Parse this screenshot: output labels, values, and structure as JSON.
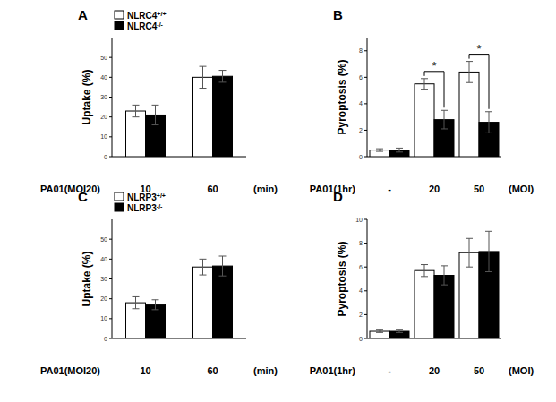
{
  "chart_data": [
    {
      "type": "bar",
      "title": "A",
      "y_label": "Uptake (%)",
      "x_label": "PA01(MOI20)",
      "x_unit_label": "(min)",
      "categories": [
        "10",
        "60"
      ],
      "ylim": [
        0,
        60
      ],
      "yticks": [
        0,
        10,
        20,
        30,
        40,
        50
      ],
      "legend": "upper left",
      "series": [
        {
          "name": "NLRC4+/+",
          "color": "#ffffff",
          "values": [
            23,
            40
          ],
          "errors": [
            3,
            5.5
          ]
        },
        {
          "name": "NLRC4-/-",
          "color": "#000000",
          "values": [
            21,
            40.5
          ],
          "errors": [
            5,
            3
          ]
        }
      ]
    },
    {
      "type": "bar",
      "title": "B",
      "y_label": "Pyroptosis (%)",
      "x_label": "PA01(1hr)",
      "x_unit_label": "(MOI)",
      "categories": [
        "-",
        "20",
        "50"
      ],
      "ylim": [
        0,
        9
      ],
      "yticks": [
        0,
        2,
        4,
        6,
        8
      ],
      "series": [
        {
          "color": "#ffffff",
          "values": [
            0.5,
            5.5,
            6.4
          ],
          "errors": [
            0.1,
            0.4,
            0.8
          ]
        },
        {
          "color": "#000000",
          "values": [
            0.5,
            2.8,
            2.6
          ],
          "errors": [
            0.15,
            0.7,
            0.8
          ]
        }
      ],
      "annotations": [
        {
          "text": "*",
          "category": "20"
        },
        {
          "text": "*",
          "category": "50"
        }
      ]
    },
    {
      "type": "bar",
      "title": "C",
      "y_label": "Uptake (%)",
      "x_label": "PA01(MOI20)",
      "x_unit_label": "(min)",
      "categories": [
        "10",
        "60"
      ],
      "ylim": [
        0,
        60
      ],
      "yticks": [
        0,
        10,
        20,
        30,
        40,
        50
      ],
      "legend": "upper left",
      "series": [
        {
          "name": "NLRP3+/+",
          "color": "#ffffff",
          "values": [
            18,
            36
          ],
          "errors": [
            3,
            4
          ]
        },
        {
          "name": "NLRP3-/-",
          "color": "#000000",
          "values": [
            17,
            36.5
          ],
          "errors": [
            2.5,
            5
          ]
        }
      ]
    },
    {
      "type": "bar",
      "title": "D",
      "y_label": "Pyroptosis (%)",
      "x_label": "PA01(1hr)",
      "x_unit_label": "(MOI)",
      "categories": [
        "-",
        "20",
        "50"
      ],
      "ylim": [
        0,
        10
      ],
      "yticks": [
        0,
        2,
        4,
        6,
        8,
        10
      ],
      "series": [
        {
          "color": "#ffffff",
          "values": [
            0.6,
            5.7,
            7.2
          ],
          "errors": [
            0.1,
            0.5,
            1.2
          ]
        },
        {
          "color": "#000000",
          "values": [
            0.6,
            5.3,
            7.3
          ],
          "errors": [
            0.1,
            0.8,
            1.7
          ]
        }
      ]
    }
  ]
}
